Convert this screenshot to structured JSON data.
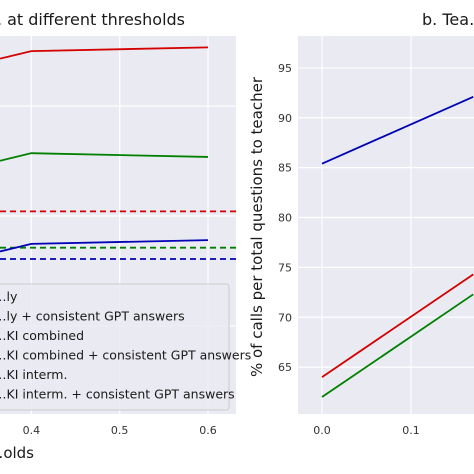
{
  "chart_data": [
    {
      "type": "line",
      "title": "…. at different thresholds",
      "xlabel": "…olds",
      "ylabel": "",
      "x_ticks": [
        0.4,
        0.5,
        0.6
      ],
      "xlim": [
        0.265,
        0.63
      ],
      "ylim": [
        0.0,
        1.0
      ],
      "grid": true,
      "legend_placement": "lower-left",
      "series": [
        {
          "name": "…ly",
          "color": "#d40000",
          "style": "dashed",
          "x": [
            0.265,
            0.63
          ],
          "y": [
            0.536,
            0.536
          ]
        },
        {
          "name": "…ly + consistent GPT answers",
          "color": "#d40000",
          "style": "solid",
          "x": [
            0.265,
            0.4,
            0.6
          ],
          "y": [
            0.94,
            0.96,
            0.97
          ]
        },
        {
          "name": "…KI combined",
          "color": "#008000",
          "style": "dashed",
          "x": [
            0.265,
            0.63
          ],
          "y": [
            0.44,
            0.44
          ]
        },
        {
          "name": "…KI combined + consistent GPT answers",
          "color": "#008000",
          "style": "solid",
          "x": [
            0.265,
            0.4,
            0.6
          ],
          "y": [
            0.67,
            0.69,
            0.68
          ]
        },
        {
          "name": "…KI interm.",
          "color": "#0000b4",
          "style": "dashed",
          "x": [
            0.265,
            0.63
          ],
          "y": [
            0.41,
            0.41
          ]
        },
        {
          "name": "…KI interm. + consistent GPT answers",
          "color": "#0000b4",
          "style": "solid",
          "x": [
            0.265,
            0.4,
            0.6
          ],
          "y": [
            0.43,
            0.45,
            0.46
          ]
        }
      ]
    },
    {
      "type": "line",
      "title": "b. Tea…",
      "xlabel": "",
      "ylabel": "% of calls per total questions to teacher",
      "x_ticks": [
        0.0,
        0.1
      ],
      "y_ticks": [
        65,
        70,
        75,
        80,
        85,
        90,
        95
      ],
      "xlim": [
        -0.03,
        0.17
      ],
      "ylim": [
        60.3,
        98.2
      ],
      "grid": true,
      "series": [
        {
          "color": "#0000b4",
          "x": [
            0.0,
            0.17
          ],
          "y": [
            85.4,
            92.1
          ]
        },
        {
          "color": "#d40000",
          "x": [
            0.0,
            0.17
          ],
          "y": [
            64.0,
            74.3
          ]
        },
        {
          "color": "#008000",
          "x": [
            0.0,
            0.17
          ],
          "y": [
            62.0,
            72.3
          ]
        }
      ]
    }
  ]
}
